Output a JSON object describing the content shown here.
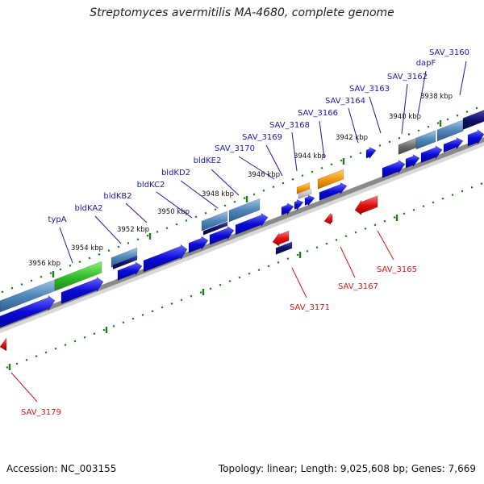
{
  "title": "Streptomyces avermitilis MA-4680, complete genome",
  "footer": {
    "accession": "Accession: NC_003155",
    "summary": "Topology: linear; Length: 9,025,608 bp; Genes: 7,669"
  },
  "colors": {
    "forward_label": "#1a1aa8",
    "reverse_label": "#d01818",
    "tick": "#1d7a1d",
    "backbone": "#8a8a8a"
  },
  "scale_labels": [
    "3938 kbp",
    "3940 kbp",
    "3942 kbp",
    "3944 kbp",
    "3946 kbp",
    "3948 kbp",
    "3950 kbp",
    "3952 kbp",
    "3954 kbp",
    "3956 kbp"
  ],
  "forward_genes": [
    "SAV_3160",
    "dapF",
    "SAV_3162",
    "SAV_3163",
    "SAV_3164",
    "SAV_3166",
    "SAV_3168",
    "SAV_3169",
    "SAV_3170",
    "bldKE2",
    "bldKD2",
    "bldKC2",
    "bldKB2",
    "bldKA2",
    "typA"
  ],
  "reverse_genes": [
    "SAV_3165",
    "SAV_3167",
    "SAV_3171",
    "SAV_3179"
  ]
}
